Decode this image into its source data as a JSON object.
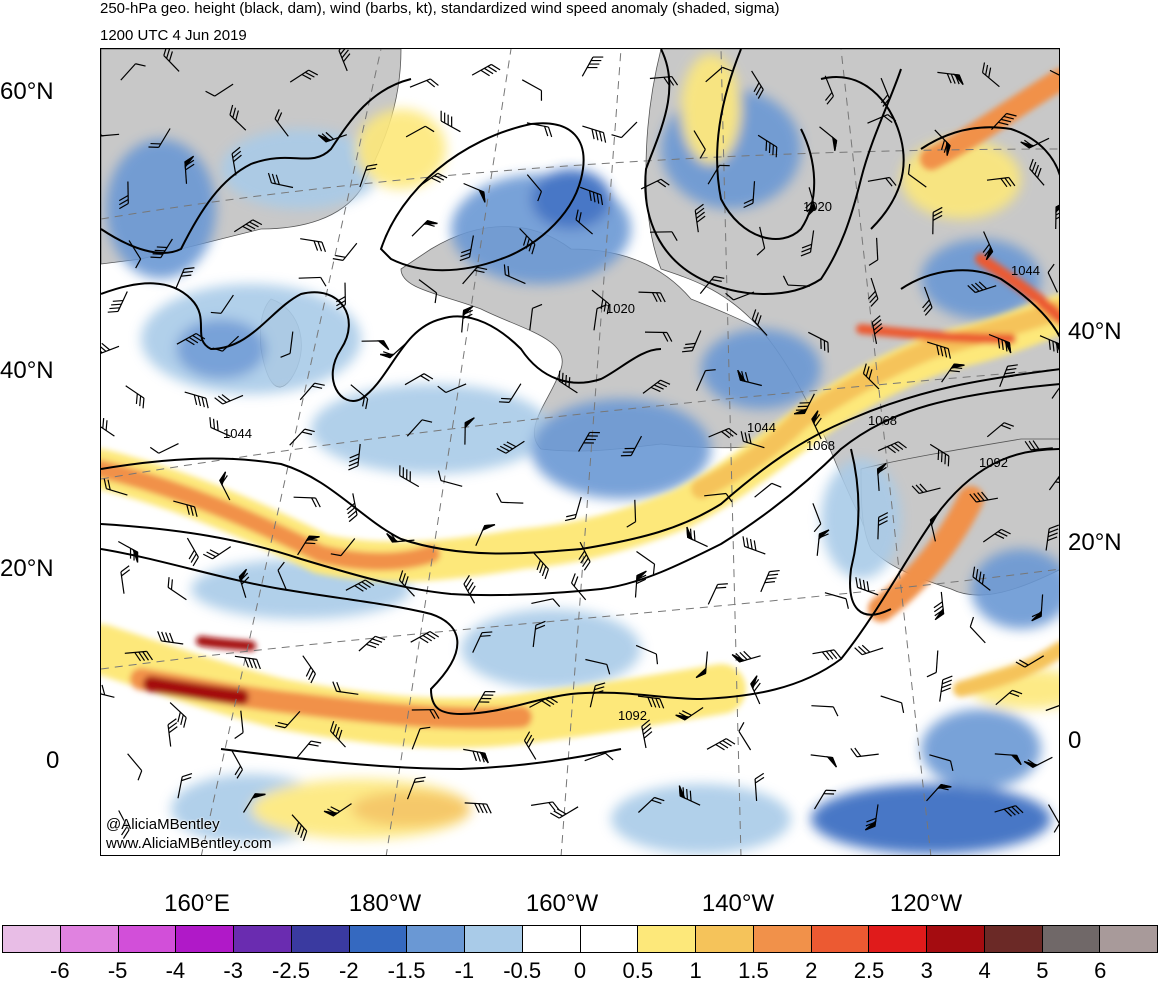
{
  "header": {
    "title": "250-hPa geo. height (black, dam), wind (barbs, kt), standardized wind speed anomaly (shaded, sigma)",
    "subtitle": "1200 UTC 4 Jun 2019"
  },
  "map": {
    "lat_labels_left": [
      "60°N",
      "40°N",
      "20°N",
      "0"
    ],
    "lat_labels_right": [
      "40°N",
      "20°N",
      "0"
    ],
    "lon_labels": [
      "160°E",
      "180°W",
      "160°W",
      "140°W",
      "120°W"
    ],
    "contour_labels": [
      "1020",
      "1020",
      "1044",
      "1044",
      "1044",
      "1068",
      "1068",
      "1092",
      "1092"
    ],
    "credit_line1": "@AliciaMBentley",
    "credit_line2": "www.AliciaMBentley.com"
  },
  "colorbar": {
    "labels": [
      "-6",
      "-5",
      "-4",
      "-3",
      "-2.5",
      "-2",
      "-1.5",
      "-1",
      "-0.5",
      "0",
      "0.5",
      "1",
      "1.5",
      "2",
      "2.5",
      "3",
      "4",
      "5",
      "6"
    ],
    "colors": [
      "#e8bde6",
      "#e082e0",
      "#d24fd9",
      "#b019c8",
      "#6a2cb0",
      "#3a3aa0",
      "#3569c0",
      "#6a98d4",
      "#a9cbe8",
      "#ffffff",
      "#ffffff",
      "#fde87a",
      "#f5c35a",
      "#f1914a",
      "#ec5a32",
      "#e01b1b",
      "#a40c10",
      "#6b2926",
      "#706868",
      "#a89a9a"
    ]
  }
}
